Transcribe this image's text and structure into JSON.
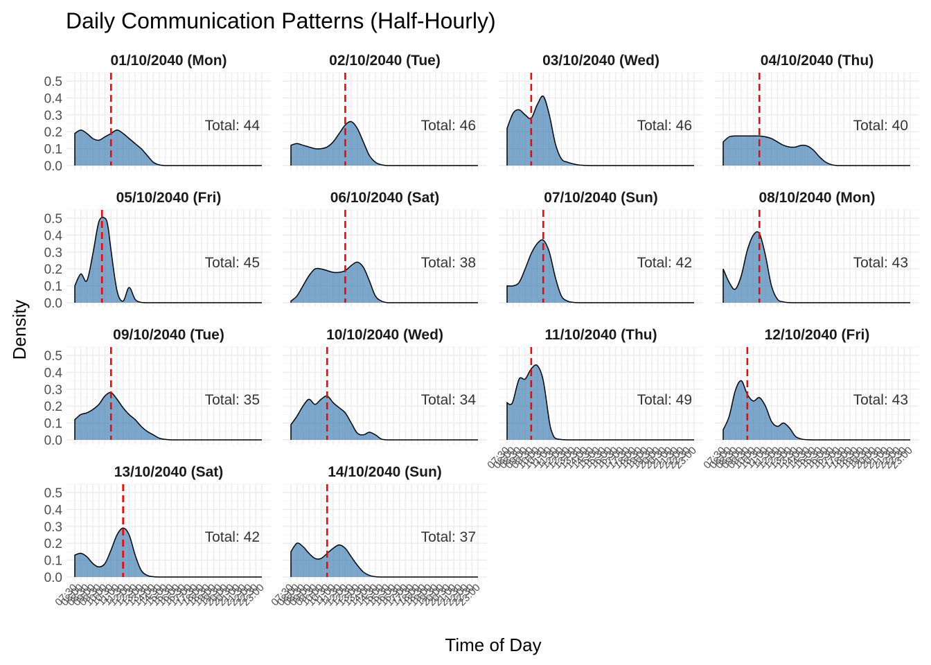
{
  "chart_data": {
    "type": "area",
    "title": "Daily Communication Patterns (Half-Hourly)",
    "xlabel": "Time of Day",
    "ylabel": "Density",
    "ylim": [
      0,
      0.5
    ],
    "y_ticks": [
      "0.0",
      "0.1",
      "0.2",
      "0.3",
      "0.4",
      "0.5"
    ],
    "x_tick_labels": [
      "07:30",
      "08:00",
      "08:30",
      "09:00",
      "09:30",
      "10:00",
      "10:30",
      "11:00",
      "11:30",
      "12:00",
      "12:30",
      "13:00",
      "13:30",
      "14:00",
      "14:30",
      "15:00",
      "15:30",
      "16:00",
      "16:30",
      "17:00",
      "17:30",
      "18:00",
      "18:30",
      "19:00",
      "19:30",
      "20:00",
      "20:30",
      "21:00",
      "21:30",
      "22:00",
      "22:30",
      "23:00"
    ],
    "x_range": [
      "07:30",
      "23:00"
    ],
    "fill_color": "#4682B4",
    "reference_line_color": "#FF0000",
    "panels": [
      {
        "title": "01/10/2040 (Mon)",
        "total": "Total: 44",
        "mean_time": "10:30",
        "x": [
          "07:30",
          "08:00",
          "08:30",
          "09:00",
          "09:30",
          "10:00",
          "10:30",
          "11:00",
          "11:30",
          "12:00",
          "12:30",
          "13:00",
          "13:30",
          "14:00",
          "14:30",
          "15:00"
        ],
        "y": [
          0.19,
          0.21,
          0.19,
          0.16,
          0.15,
          0.17,
          0.19,
          0.21,
          0.19,
          0.16,
          0.13,
          0.1,
          0.06,
          0.02,
          0.004,
          0
        ]
      },
      {
        "title": "02/10/2040 (Tue)",
        "total": "Total: 46",
        "mean_time": "12:00",
        "x": [
          "07:30",
          "08:00",
          "08:30",
          "09:00",
          "09:30",
          "10:00",
          "10:30",
          "11:00",
          "11:30",
          "12:00",
          "12:30",
          "13:00",
          "13:30",
          "14:00",
          "14:30",
          "15:00",
          "15:30"
        ],
        "y": [
          0.12,
          0.13,
          0.12,
          0.11,
          0.1,
          0.1,
          0.11,
          0.14,
          0.19,
          0.24,
          0.26,
          0.22,
          0.14,
          0.06,
          0.02,
          0.005,
          0
        ]
      },
      {
        "title": "03/10/2040 (Wed)",
        "total": "Total: 46",
        "mean_time": "09:30",
        "x": [
          "07:30",
          "08:00",
          "08:30",
          "09:00",
          "09:30",
          "10:00",
          "10:30",
          "11:00",
          "11:30",
          "12:00",
          "12:30",
          "13:00",
          "13:30",
          "14:00",
          "14:30"
        ],
        "y": [
          0.22,
          0.31,
          0.33,
          0.3,
          0.28,
          0.36,
          0.41,
          0.3,
          0.13,
          0.04,
          0.02,
          0.01,
          0.003,
          0.001,
          0
        ]
      },
      {
        "title": "04/10/2040 (Thu)",
        "total": "Total: 40",
        "mean_time": "10:30",
        "x": [
          "07:30",
          "08:00",
          "08:30",
          "09:00",
          "09:30",
          "10:00",
          "10:30",
          "11:00",
          "11:30",
          "12:00",
          "12:30",
          "13:00",
          "13:30",
          "14:00",
          "14:30",
          "15:00",
          "15:30",
          "16:00",
          "16:30",
          "17:00"
        ],
        "y": [
          0.14,
          0.17,
          0.175,
          0.175,
          0.175,
          0.175,
          0.175,
          0.17,
          0.16,
          0.14,
          0.12,
          0.11,
          0.11,
          0.12,
          0.115,
          0.09,
          0.05,
          0.02,
          0.005,
          0
        ]
      },
      {
        "title": "05/10/2040 (Fri)",
        "total": "Total: 45",
        "mean_time": "09:45",
        "x": [
          "07:30",
          "08:00",
          "08:30",
          "09:00",
          "09:30",
          "10:00",
          "10:15",
          "10:30",
          "11:00",
          "11:30",
          "12:00",
          "12:30",
          "13:00",
          "13:30"
        ],
        "y": [
          0.1,
          0.17,
          0.13,
          0.29,
          0.48,
          0.5,
          0.45,
          0.31,
          0.07,
          0.01,
          0.09,
          0.02,
          0.002,
          0
        ]
      },
      {
        "title": "06/10/2040 (Sat)",
        "total": "Total: 38",
        "mean_time": "12:00",
        "x": [
          "07:30",
          "08:00",
          "08:30",
          "09:00",
          "09:30",
          "10:00",
          "10:30",
          "11:00",
          "11:30",
          "12:00",
          "12:30",
          "13:00",
          "13:30",
          "14:00",
          "14:30",
          "15:00",
          "15:30"
        ],
        "y": [
          0.01,
          0.04,
          0.1,
          0.16,
          0.2,
          0.2,
          0.19,
          0.18,
          0.18,
          0.19,
          0.22,
          0.24,
          0.21,
          0.13,
          0.04,
          0.01,
          0
        ]
      },
      {
        "title": "07/10/2040 (Sun)",
        "total": "Total: 42",
        "mean_time": "10:30",
        "x": [
          "07:30",
          "08:00",
          "08:30",
          "09:00",
          "09:30",
          "10:00",
          "10:30",
          "11:00",
          "11:30",
          "12:00",
          "12:30",
          "13:00",
          "13:30"
        ],
        "y": [
          0.1,
          0.1,
          0.12,
          0.2,
          0.29,
          0.35,
          0.37,
          0.3,
          0.15,
          0.04,
          0.01,
          0.002,
          0
        ]
      },
      {
        "title": "08/10/2040 (Mon)",
        "total": "Total: 43",
        "mean_time": "10:30",
        "x": [
          "07:30",
          "08:00",
          "08:30",
          "09:00",
          "09:30",
          "10:00",
          "10:30",
          "11:00",
          "11:30",
          "12:00",
          "12:30",
          "13:00",
          "13:30"
        ],
        "y": [
          0.2,
          0.12,
          0.08,
          0.16,
          0.31,
          0.4,
          0.41,
          0.28,
          0.1,
          0.02,
          0.005,
          0.001,
          0
        ]
      },
      {
        "title": "09/10/2040 (Tue)",
        "total": "Total: 35",
        "mean_time": "10:30",
        "x": [
          "07:30",
          "08:00",
          "08:30",
          "09:00",
          "09:30",
          "10:00",
          "10:30",
          "11:00",
          "11:30",
          "12:00",
          "12:30",
          "13:00",
          "13:30",
          "14:00",
          "14:30",
          "15:00",
          "15:30"
        ],
        "y": [
          0.12,
          0.15,
          0.16,
          0.18,
          0.21,
          0.26,
          0.28,
          0.24,
          0.19,
          0.15,
          0.12,
          0.08,
          0.05,
          0.03,
          0.01,
          0.003,
          0
        ]
      },
      {
        "title": "10/10/2040 (Wed)",
        "total": "Total: 34",
        "mean_time": "10:30",
        "x": [
          "07:30",
          "08:00",
          "08:30",
          "09:00",
          "09:30",
          "10:00",
          "10:30",
          "11:00",
          "11:30",
          "12:00",
          "12:30",
          "13:00",
          "13:30",
          "14:00",
          "14:30",
          "15:00",
          "15:30"
        ],
        "y": [
          0.09,
          0.14,
          0.2,
          0.24,
          0.21,
          0.24,
          0.26,
          0.22,
          0.19,
          0.16,
          0.1,
          0.04,
          0.03,
          0.045,
          0.03,
          0.005,
          0
        ]
      },
      {
        "title": "11/10/2040 (Thu)",
        "total": "Total: 49",
        "mean_time": "09:30",
        "x": [
          "07:30",
          "07:45",
          "08:00",
          "08:30",
          "09:00",
          "09:30",
          "10:00",
          "10:30",
          "11:00",
          "11:15",
          "11:30",
          "12:00",
          "12:30"
        ],
        "y": [
          0.22,
          0.21,
          0.23,
          0.36,
          0.36,
          0.42,
          0.44,
          0.35,
          0.11,
          0.04,
          0.01,
          0.002,
          0
        ]
      },
      {
        "title": "12/10/2040 (Fri)",
        "total": "Total: 43",
        "mean_time": "09:30",
        "x": [
          "07:30",
          "08:00",
          "08:30",
          "09:00",
          "09:30",
          "10:00",
          "10:30",
          "11:00",
          "11:30",
          "12:00",
          "12:30",
          "13:00",
          "13:30",
          "14:00",
          "14:30",
          "15:00"
        ],
        "y": [
          0.06,
          0.14,
          0.29,
          0.35,
          0.27,
          0.23,
          0.25,
          0.2,
          0.11,
          0.08,
          0.1,
          0.07,
          0.02,
          0.005,
          0.001,
          0
        ]
      },
      {
        "title": "13/10/2040 (Sat)",
        "total": "Total: 42",
        "mean_time": "11:30",
        "x": [
          "07:30",
          "08:00",
          "08:30",
          "09:00",
          "09:30",
          "10:00",
          "10:30",
          "11:00",
          "11:30",
          "12:00",
          "12:30",
          "13:00",
          "13:30",
          "14:00",
          "14:30"
        ],
        "y": [
          0.13,
          0.14,
          0.12,
          0.08,
          0.06,
          0.08,
          0.16,
          0.25,
          0.29,
          0.25,
          0.13,
          0.04,
          0.01,
          0.002,
          0
        ]
      },
      {
        "title": "14/10/2040 (Sun)",
        "total": "Total: 37",
        "mean_time": "10:30",
        "x": [
          "07:30",
          "08:00",
          "08:30",
          "09:00",
          "09:30",
          "10:00",
          "10:30",
          "11:00",
          "11:30",
          "12:00",
          "12:30",
          "13:00",
          "13:30",
          "14:00",
          "14:30",
          "15:00"
        ],
        "y": [
          0.15,
          0.2,
          0.18,
          0.14,
          0.11,
          0.11,
          0.14,
          0.17,
          0.19,
          0.17,
          0.12,
          0.07,
          0.03,
          0.01,
          0.002,
          0
        ]
      }
    ]
  }
}
